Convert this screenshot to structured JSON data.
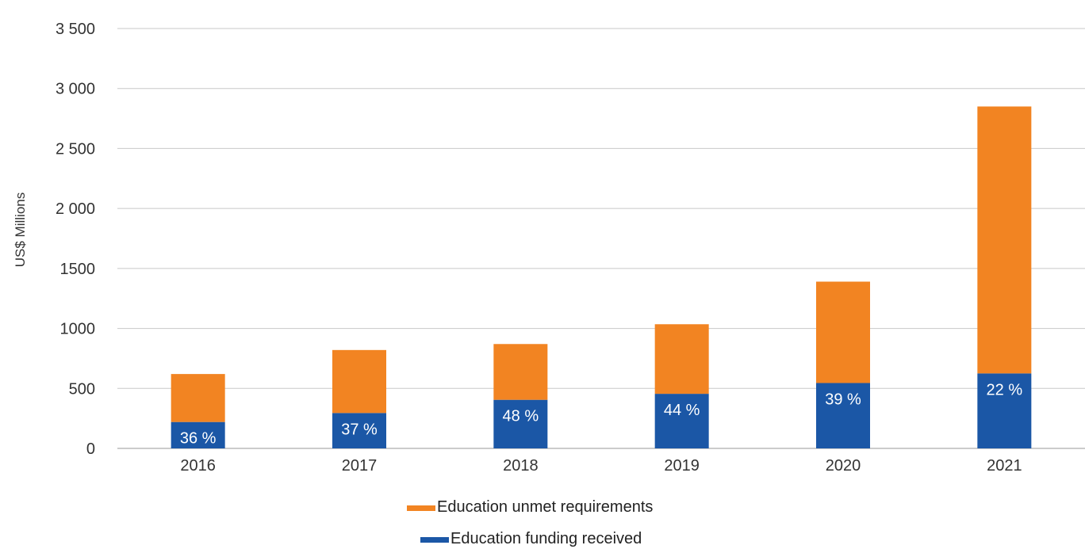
{
  "chart_data": {
    "type": "bar",
    "stacked": true,
    "categories": [
      "2016",
      "2017",
      "2018",
      "2019",
      "2020",
      "2021"
    ],
    "series": [
      {
        "name": "Education funding received",
        "color": "#1b57a6",
        "values": [
          220,
          295,
          405,
          455,
          545,
          625
        ]
      },
      {
        "name": "Education unmet requirements",
        "color": "#f28422",
        "values": [
          400,
          525,
          465,
          580,
          845,
          2225
        ]
      }
    ],
    "data_labels": [
      "36 %",
      "37 %",
      "48 %",
      "44 %",
      "39 %",
      "22 %"
    ],
    "y_ticks": [
      {
        "value": 0,
        "label": "0"
      },
      {
        "value": 500,
        "label": "500"
      },
      {
        "value": 1000,
        "label": "1000"
      },
      {
        "value": 1500,
        "label": "1500"
      },
      {
        "value": 2000,
        "label": "2 000"
      },
      {
        "value": 2500,
        "label": "2 500"
      },
      {
        "value": 3000,
        "label": "3 000"
      },
      {
        "value": 3500,
        "label": "3 500"
      }
    ],
    "ylim": [
      0,
      3500
    ],
    "xlabel": "",
    "ylabel": "US$ Millions",
    "grid": true,
    "legend_position": "bottom",
    "legend_order": [
      "Education unmet requirements",
      "Education funding received"
    ]
  }
}
